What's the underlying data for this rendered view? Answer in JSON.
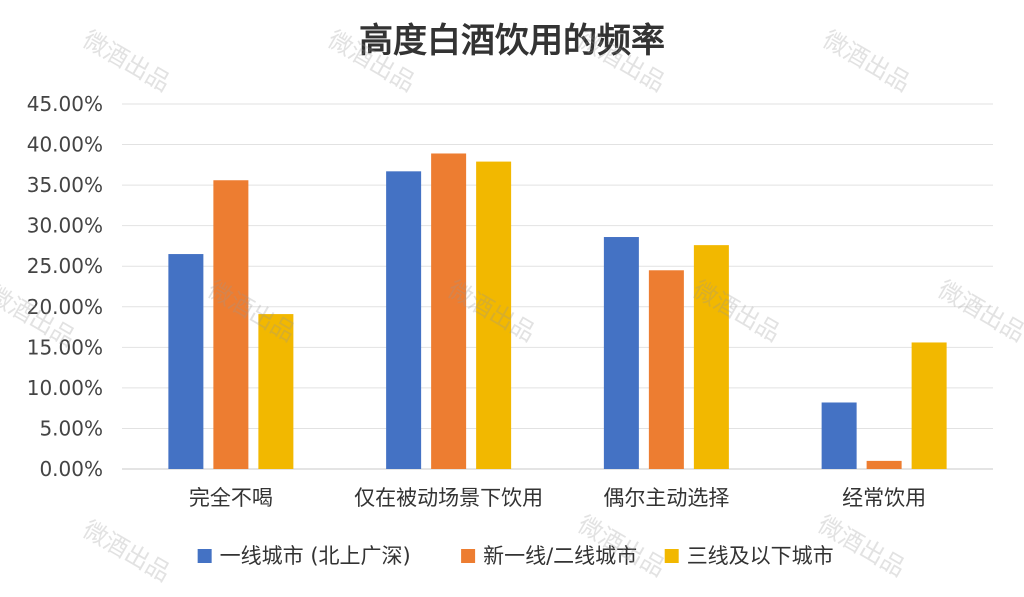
{
  "chart_data": {
    "type": "bar",
    "title": "高度白酒饮用的频率",
    "categories": [
      "完全不喝",
      "仅在被动场景下饮用",
      "偶尔主动选择",
      "经常饮用"
    ],
    "series": [
      {
        "name": "一线城市 (北上广深)",
        "color": "#4472C4",
        "values": [
          26.5,
          36.7,
          28.6,
          8.2
        ]
      },
      {
        "name": "新一线/二线城市",
        "color": "#ED7D31",
        "values": [
          35.6,
          38.9,
          24.5,
          1.0
        ]
      },
      {
        "name": "三线及以下城市",
        "color": "#F2B800",
        "values": [
          19.1,
          37.9,
          27.6,
          15.6
        ]
      }
    ],
    "ylim": [
      0,
      45
    ],
    "yticks": [
      "0.00%",
      "5.00%",
      "10.00%",
      "15.00%",
      "20.00%",
      "25.00%",
      "30.00%",
      "35.00%",
      "40.00%",
      "45.00%"
    ],
    "xlabel": "",
    "ylabel": "",
    "grid": true,
    "legend_position": "bottom"
  },
  "watermark": "微酒出品"
}
